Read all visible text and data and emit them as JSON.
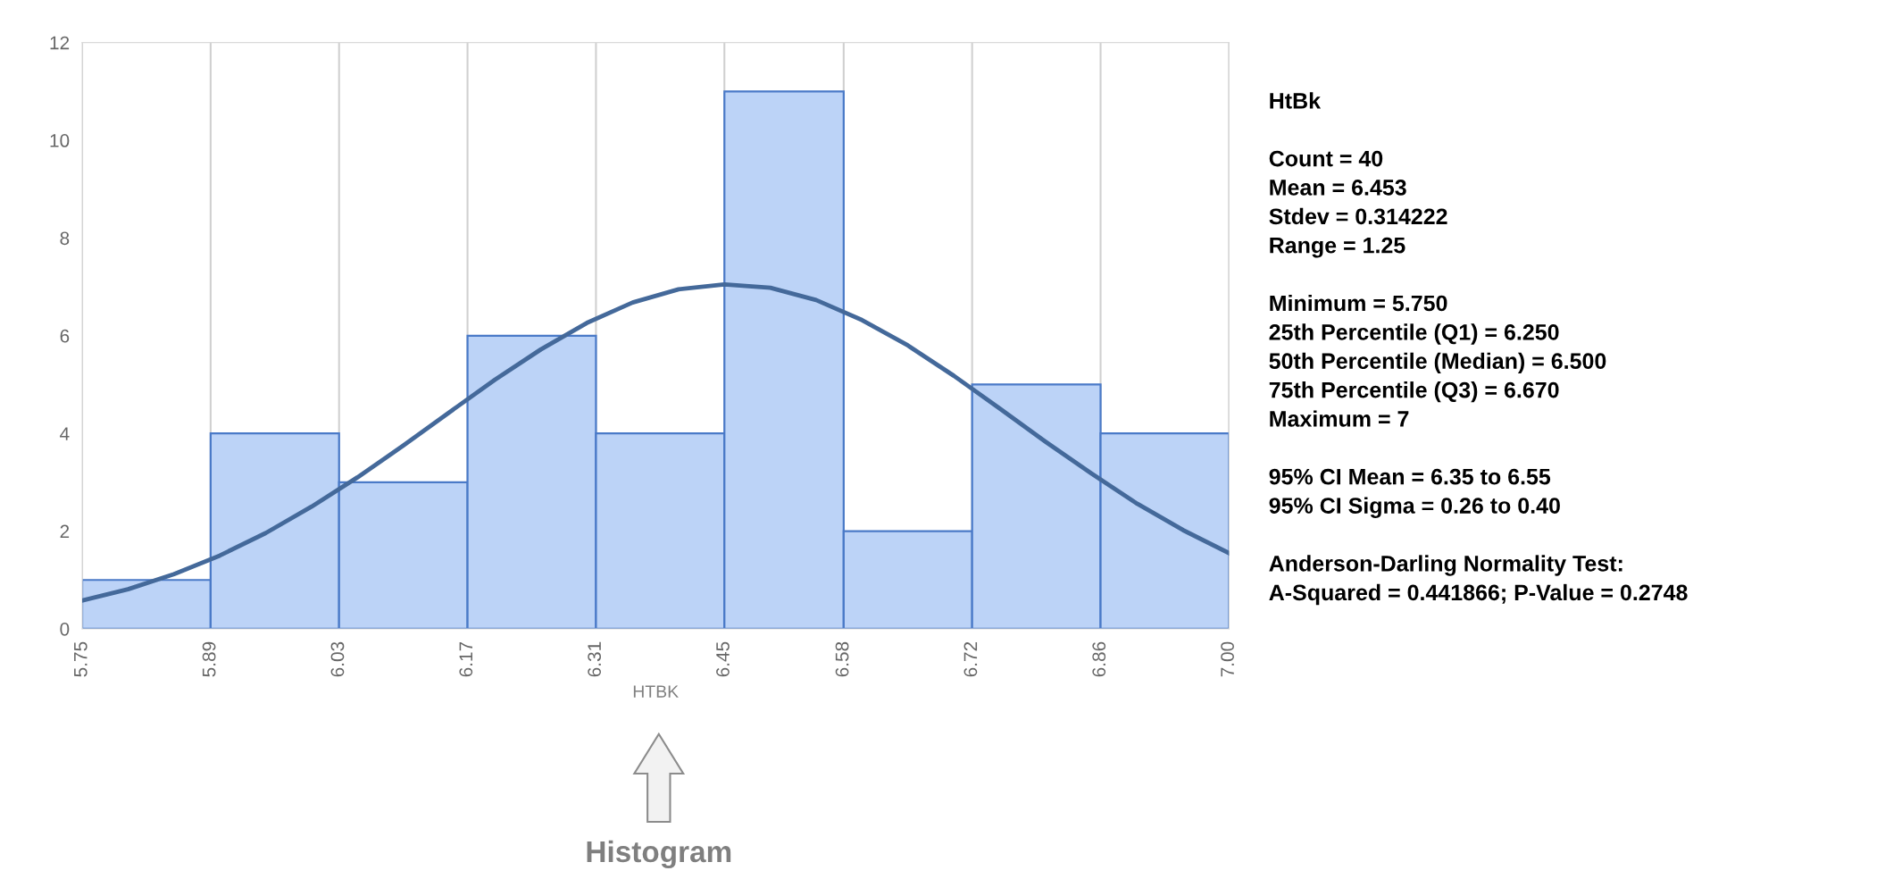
{
  "chart_data": {
    "type": "histogram",
    "xlabel": "HTBK",
    "bins": [
      5.75,
      5.89,
      6.03,
      6.17,
      6.31,
      6.45,
      6.58,
      6.72,
      6.86,
      7.0
    ],
    "values": [
      1,
      4,
      3,
      6,
      4,
      11,
      2,
      5,
      4
    ],
    "color": "#bcd3f7",
    "series": [
      {
        "type": "line",
        "color": "#44699a",
        "x": [
          5.75,
          5.8,
          5.85,
          5.9,
          5.95,
          6.0,
          6.05,
          6.1,
          6.15,
          6.2,
          6.25,
          6.3,
          6.35,
          6.4,
          6.45,
          6.5,
          6.55,
          6.6,
          6.65,
          6.7,
          6.75,
          6.8,
          6.85,
          6.9,
          6.95,
          7.0
        ],
        "values": [
          0.58,
          0.81,
          1.12,
          1.5,
          1.96,
          2.5,
          3.1,
          3.75,
          4.43,
          5.1,
          5.72,
          6.26,
          6.68,
          6.95,
          7.05,
          6.98,
          6.73,
          6.32,
          5.8,
          5.18,
          4.51,
          3.83,
          3.18,
          2.56,
          2.02,
          1.55
        ]
      }
    ],
    "xlim": [
      5.75,
      7.0
    ],
    "xticks": [
      5.75,
      5.89,
      6.03,
      6.17,
      6.31,
      6.45,
      6.58,
      6.72,
      6.86,
      {
        "value": 7.0,
        "label": "7.00"
      }
    ],
    "ylim": [
      0,
      12
    ],
    "yticks": [
      0,
      2,
      4,
      6,
      8,
      10,
      12
    ],
    "grid": "x",
    "annotations": [
      "HtBk",
      "Count = 40\nMean = 6.453\nStdev = 0.314222\nRange = 1.25",
      "Minimum = 5.750\n25th Percentile (Q1) = 6.250\n50th Percentile (Median) = 6.500\n75th Percentile (Q3) = 6.670\nMaximum = 7",
      "95% CI Mean = 6.35 to 6.55\n95% CI Sigma = 0.26 to 0.40",
      "Anderson-Darling Normality Test:\nA-Squared = 0.441866; P-Value = 0.2748",
      "Histogram"
    ]
  }
}
